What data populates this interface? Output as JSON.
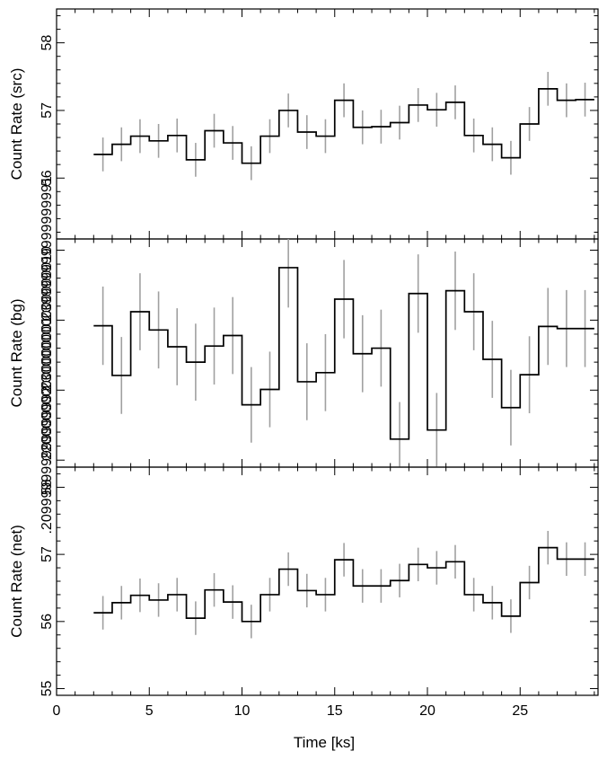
{
  "chart_data": {
    "type": "step-line",
    "xlabel": "Time [ks]",
    "xlim": [
      0,
      29.2
    ],
    "x_ticks": [
      0,
      5,
      10,
      15,
      20,
      25
    ],
    "x": [
      2.5,
      3.5,
      4.5,
      5.5,
      6.5,
      7.5,
      8.5,
      9.5,
      10.5,
      11.5,
      12.5,
      13.5,
      14.5,
      15.5,
      16.5,
      17.5,
      18.5,
      19.5,
      20.5,
      21.5,
      22.5,
      23.5,
      24.5,
      25.5,
      26.5,
      27.5,
      28.5
    ],
    "bin_width": 1.0,
    "colors": {
      "line": "#000000",
      "errorbar": "#a0a0a0"
    },
    "panels": [
      {
        "ylabel": "Count Rate (src)",
        "ylim": [
          55.1,
          58.5
        ],
        "y_ticks": [
          56,
          57,
          58
        ],
        "values": [
          56.35,
          56.5,
          56.62,
          56.55,
          56.63,
          56.27,
          56.7,
          56.52,
          56.22,
          56.62,
          57.0,
          56.68,
          56.62,
          57.15,
          56.75,
          56.76,
          56.82,
          57.08,
          57.01,
          57.12,
          56.63,
          56.5,
          56.3,
          56.8,
          57.32,
          57.15,
          57.16
        ],
        "errors": [
          0.25,
          0.25,
          0.25,
          0.25,
          0.25,
          0.25,
          0.25,
          0.25,
          0.25,
          0.25,
          0.25,
          0.25,
          0.25,
          0.25,
          0.25,
          0.25,
          0.25,
          0.25,
          0.25,
          0.25,
          0.25,
          0.25,
          0.25,
          0.25,
          0.25,
          0.25,
          0.25
        ]
      },
      {
        "ylabel": "Count Rate (bg)",
        "ylim": [
          0.209,
          0.2416
        ],
        "y_ticks": [
          0.21,
          0.22,
          0.23,
          0.24
        ],
        "values": [
          0.2292,
          0.2221,
          0.2312,
          0.2286,
          0.2262,
          0.224,
          0.2263,
          0.2278,
          0.2179,
          0.2201,
          0.2375,
          0.2212,
          0.2225,
          0.233,
          0.2252,
          0.226,
          0.213,
          0.2338,
          0.2143,
          0.2342,
          0.2312,
          0.2244,
          0.2175,
          0.2222,
          0.2291,
          0.2288,
          0.2288
        ],
        "errors": [
          0.0056,
          0.0055,
          0.0055,
          0.0055,
          0.0055,
          0.0055,
          0.0055,
          0.0055,
          0.0054,
          0.0054,
          0.0057,
          0.0055,
          0.0055,
          0.0056,
          0.0055,
          0.0055,
          0.0053,
          0.0056,
          0.0053,
          0.0056,
          0.0055,
          0.0055,
          0.0054,
          0.0055,
          0.0055,
          0.0055,
          0.0055
        ]
      },
      {
        "ylabel": "Count Rate (net)",
        "ylim": [
          54.9,
          58.3
        ],
        "y_ticks": [
          55,
          56,
          57,
          58
        ],
        "values": [
          56.13,
          56.28,
          56.39,
          56.32,
          56.4,
          56.05,
          56.47,
          56.29,
          56.0,
          56.4,
          56.78,
          56.46,
          56.4,
          56.92,
          56.53,
          56.53,
          56.61,
          56.85,
          56.8,
          56.89,
          56.4,
          56.28,
          56.08,
          56.58,
          57.1,
          56.93,
          56.93
        ],
        "errors": [
          0.25,
          0.25,
          0.25,
          0.25,
          0.25,
          0.25,
          0.25,
          0.25,
          0.25,
          0.25,
          0.25,
          0.25,
          0.25,
          0.25,
          0.25,
          0.25,
          0.25,
          0.25,
          0.25,
          0.25,
          0.25,
          0.25,
          0.25,
          0.25,
          0.25,
          0.25,
          0.25
        ]
      }
    ]
  }
}
